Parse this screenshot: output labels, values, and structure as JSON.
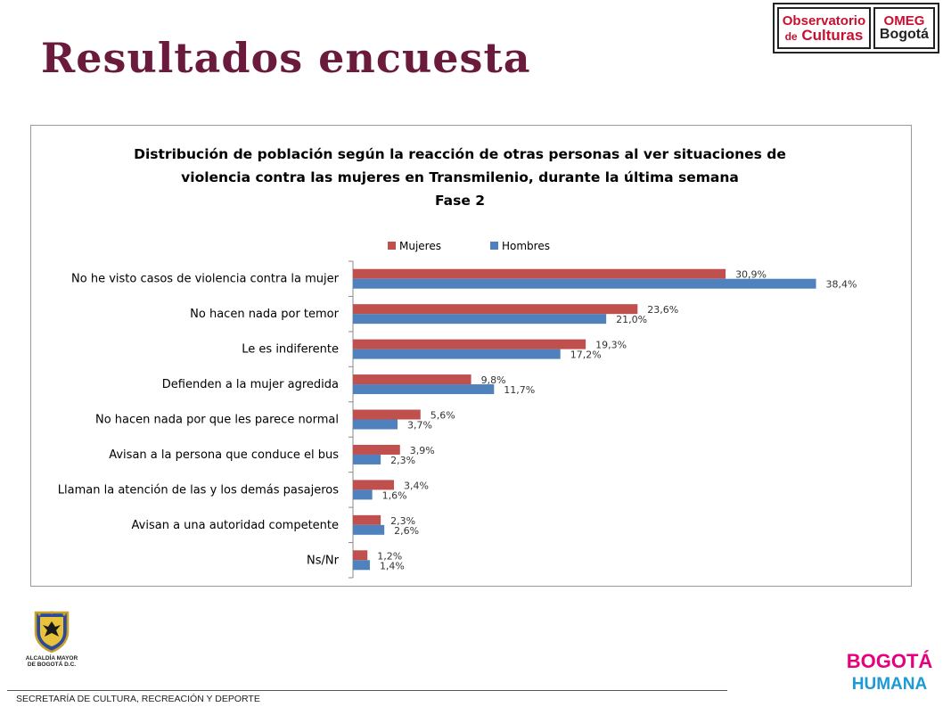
{
  "slide": {
    "title": "Resultados encuesta",
    "footer": "SECRETARÍA DE CULTURA, RECREACIÓN Y DEPORTE"
  },
  "logos": {
    "omeg": {
      "line1": "Observatorio",
      "line2_prefix": "de",
      "line2_main": "Culturas",
      "right1": "OMEG",
      "right2": "Bogotá"
    },
    "alcaldia": {
      "line1": "ALCALDÍA MAYOR",
      "line2": "DE BOGOTÁ D.C."
    },
    "bogota_humana": {
      "line1": "BOGOTÁ",
      "line2": "HUMANA"
    }
  },
  "colors": {
    "title": "#6a1b3c",
    "mujeres": "#c0504d",
    "hombres": "#4f81bd"
  },
  "chart_data": {
    "type": "bar",
    "orientation": "horizontal",
    "title_lines": [
      "Distribución de población según la reacción de otras personas al ver situaciones de",
      "violencia contra las mujeres en Transmilenio, durante la última semana",
      "Fase 2"
    ],
    "legend_position": "top",
    "grid": false,
    "xlim": [
      0,
      40
    ],
    "categories": [
      "No he visto casos de violencia contra la mujer",
      "No hacen nada por temor",
      "Le es indiferente",
      "Defienden a la mujer agredida",
      "No hacen nada por que les parece normal",
      "Avisan a la persona que conduce el bus",
      "Llaman la atención de las y los demás pasajeros",
      "Avisan a una autoridad competente",
      "Ns/Nr"
    ],
    "series": [
      {
        "name": "Mujeres",
        "color": "#c0504d",
        "values": [
          30.9,
          23.6,
          19.3,
          9.8,
          5.6,
          3.9,
          3.4,
          2.3,
          1.2
        ],
        "labels": [
          "30,9%",
          "23,6%",
          "19,3%",
          "9,8%",
          "5,6%",
          "3,9%",
          "3,4%",
          "2,3%",
          "1,2%"
        ]
      },
      {
        "name": "Hombres",
        "color": "#4f81bd",
        "values": [
          38.4,
          21.0,
          17.2,
          11.7,
          3.7,
          2.3,
          1.6,
          2.6,
          1.4
        ],
        "labels": [
          "38,4%",
          "21,0%",
          "17,2%",
          "11,7%",
          "3,7%",
          "2,3%",
          "1,6%",
          "2,6%",
          "1,4%"
        ]
      }
    ]
  }
}
